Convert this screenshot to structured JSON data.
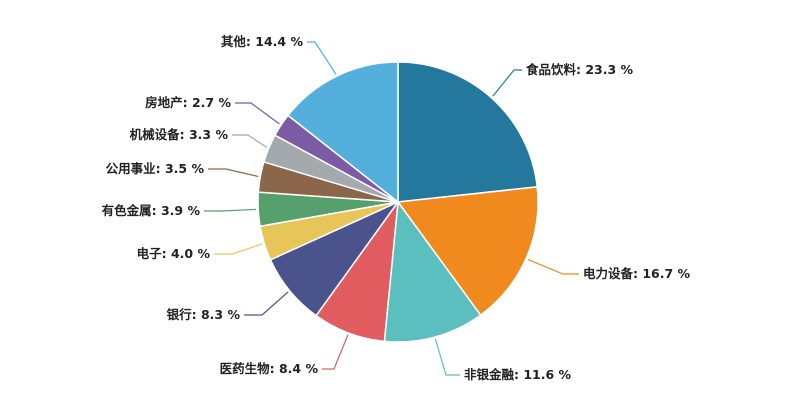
{
  "chart_data": {
    "type": "pie",
    "title": "",
    "start_angle_deg": 90,
    "direction": "clockwise",
    "slices": [
      {
        "label": "食品饮料",
        "value": 23.3,
        "display": "食品饮料: 23.3 %",
        "color": "#24789e"
      },
      {
        "label": "电力设备",
        "value": 16.7,
        "display": "电力设备: 16.7 %",
        "color": "#f08a1f"
      },
      {
        "label": "非银金融",
        "value": 11.6,
        "display": "非银金融: 11.6 %",
        "color": "#5cbfbf"
      },
      {
        "label": "医药生物",
        "value": 8.4,
        "display": "医药生物: 8.4 %",
        "color": "#e15c5f"
      },
      {
        "label": "银行",
        "value": 8.3,
        "display": "银行: 8.3 %",
        "color": "#4a538c"
      },
      {
        "label": "电子",
        "value": 4.0,
        "display": "电子: 4.0 %",
        "color": "#e7c558"
      },
      {
        "label": "有色金属",
        "value": 3.9,
        "display": "有色金属: 3.9 %",
        "color": "#55a06c"
      },
      {
        "label": "公用事业",
        "value": 3.5,
        "display": "公用事业: 3.5 %",
        "color": "#8b6649"
      },
      {
        "label": "机械设备",
        "value": 3.3,
        "display": "机械设备: 3.3 %",
        "color": "#a3a9ad"
      },
      {
        "label": "房地产",
        "value": 2.7,
        "display": "房地产: 2.7 %",
        "color": "#7b5ba6"
      },
      {
        "label": "其他",
        "value": 14.4,
        "display": "其他: 14.4 %",
        "color": "#55afdc"
      }
    ]
  }
}
